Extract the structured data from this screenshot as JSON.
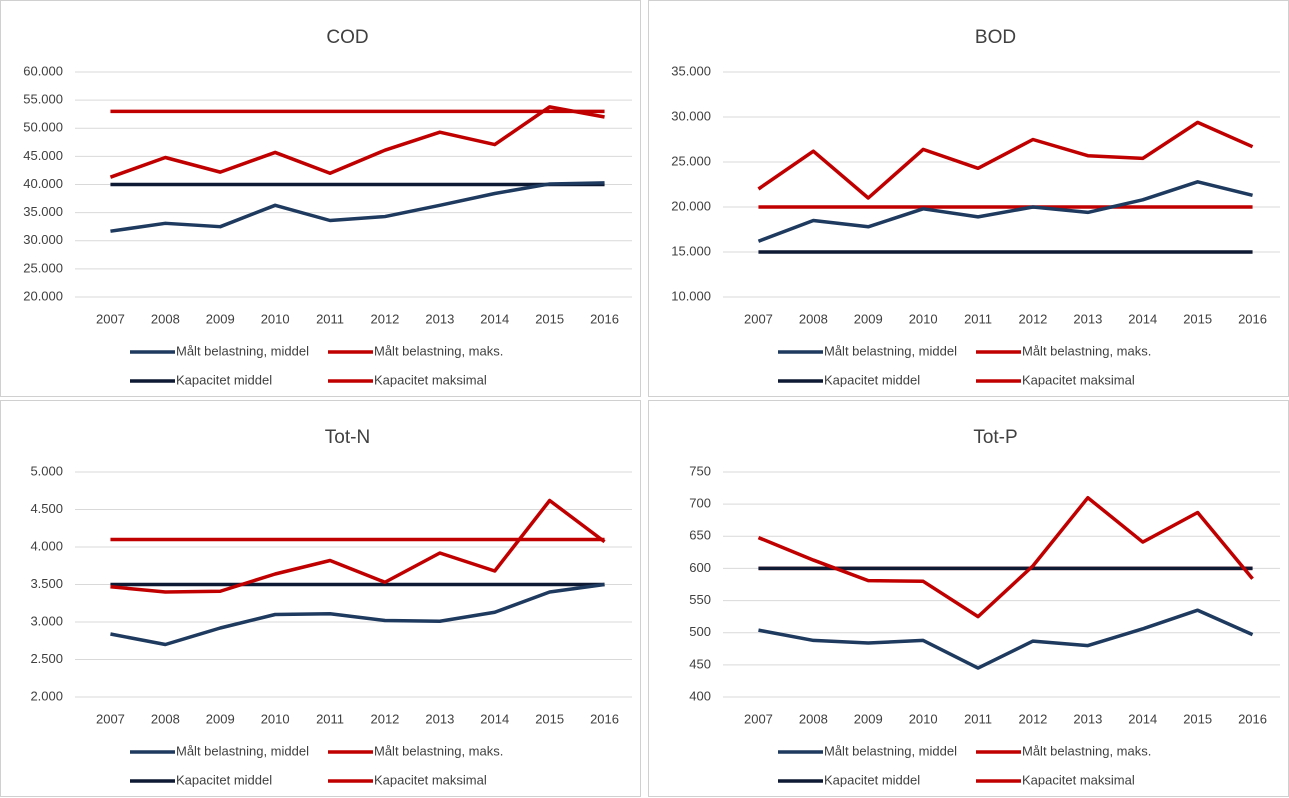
{
  "chart_data": [
    {
      "type": "line",
      "title": "COD",
      "categories": [
        "2007",
        "2008",
        "2009",
        "2010",
        "2011",
        "2012",
        "2013",
        "2014",
        "2015",
        "2016"
      ],
      "ylim": [
        20000,
        60000
      ],
      "yticks": [
        {
          "value": 20000,
          "label": "20.000"
        },
        {
          "value": 25000,
          "label": "25.000"
        },
        {
          "value": 30000,
          "label": "30.000"
        },
        {
          "value": 35000,
          "label": "35.000"
        },
        {
          "value": 40000,
          "label": "40.000"
        },
        {
          "value": 45000,
          "label": "45.000"
        },
        {
          "value": 50000,
          "label": "50.000"
        },
        {
          "value": 55000,
          "label": "55.000"
        },
        {
          "value": 60000,
          "label": "60.000"
        }
      ],
      "grid": true,
      "series": [
        {
          "name": "Målt belastning, middel",
          "color": "#1f3a5f",
          "values": [
            31700,
            33100,
            32500,
            36300,
            33600,
            34300,
            36300,
            38400,
            40100,
            40300
          ]
        },
        {
          "name": "Målt belastning, maks.",
          "color": "#c00000",
          "values": [
            41300,
            44800,
            42200,
            45700,
            42000,
            46100,
            49300,
            47100,
            53800,
            52000
          ]
        },
        {
          "name": "Kapacitet middel",
          "color": "#0e1a33",
          "values": [
            40000,
            40000,
            40000,
            40000,
            40000,
            40000,
            40000,
            40000,
            40000,
            40000
          ]
        },
        {
          "name": "Kapacitet maksimal",
          "color": "#c00000",
          "values": [
            53000,
            53000,
            53000,
            53000,
            53000,
            53000,
            53000,
            53000,
            53000,
            53000
          ]
        }
      ]
    },
    {
      "type": "line",
      "title": "BOD",
      "categories": [
        "2007",
        "2008",
        "2009",
        "2010",
        "2011",
        "2012",
        "2013",
        "2014",
        "2015",
        "2016"
      ],
      "ylim": [
        10000,
        35000
      ],
      "yticks": [
        {
          "value": 10000,
          "label": "10.000"
        },
        {
          "value": 15000,
          "label": "15.000"
        },
        {
          "value": 20000,
          "label": "20.000"
        },
        {
          "value": 25000,
          "label": "25.000"
        },
        {
          "value": 30000,
          "label": "30.000"
        },
        {
          "value": 35000,
          "label": "35.000"
        }
      ],
      "grid": true,
      "series": [
        {
          "name": "Målt belastning, middel",
          "color": "#1f3a5f",
          "values": [
            16200,
            18500,
            17800,
            19800,
            18900,
            20000,
            19400,
            20800,
            22800,
            21300
          ]
        },
        {
          "name": "Målt belastning, maks.",
          "color": "#c00000",
          "values": [
            22000,
            26200,
            21000,
            26400,
            24300,
            27500,
            25700,
            25400,
            29400,
            26700
          ]
        },
        {
          "name": "Kapacitet middel",
          "color": "#0e1a33",
          "values": [
            15000,
            15000,
            15000,
            15000,
            15000,
            15000,
            15000,
            15000,
            15000,
            15000
          ]
        },
        {
          "name": "Kapacitet maksimal",
          "color": "#c00000",
          "values": [
            20000,
            20000,
            20000,
            20000,
            20000,
            20000,
            20000,
            20000,
            20000,
            20000
          ]
        }
      ]
    },
    {
      "type": "line",
      "title": "Tot-N",
      "categories": [
        "2007",
        "2008",
        "2009",
        "2010",
        "2011",
        "2012",
        "2013",
        "2014",
        "2015",
        "2016"
      ],
      "ylim": [
        2000,
        5000
      ],
      "yticks": [
        {
          "value": 2000,
          "label": "2.000"
        },
        {
          "value": 2500,
          "label": "2.500"
        },
        {
          "value": 3000,
          "label": "3.000"
        },
        {
          "value": 3500,
          "label": "3.500"
        },
        {
          "value": 4000,
          "label": "4.000"
        },
        {
          "value": 4500,
          "label": "4.500"
        },
        {
          "value": 5000,
          "label": "5.000"
        }
      ],
      "grid": true,
      "series": [
        {
          "name": "Målt belastning, middel",
          "color": "#1f3a5f",
          "values": [
            2840,
            2700,
            2920,
            3100,
            3110,
            3020,
            3010,
            3130,
            3400,
            3500
          ]
        },
        {
          "name": "Målt belastning, maks.",
          "color": "#c00000",
          "values": [
            3470,
            3400,
            3410,
            3640,
            3820,
            3530,
            3920,
            3680,
            4620,
            4070
          ]
        },
        {
          "name": "Kapacitet middel",
          "color": "#0e1a33",
          "values": [
            3500,
            3500,
            3500,
            3500,
            3500,
            3500,
            3500,
            3500,
            3500,
            3500
          ]
        },
        {
          "name": "Kapacitet maksimal",
          "color": "#c00000",
          "values": [
            4100,
            4100,
            4100,
            4100,
            4100,
            4100,
            4100,
            4100,
            4100,
            4100
          ]
        }
      ]
    },
    {
      "type": "line",
      "title": "Tot-P",
      "categories": [
        "2007",
        "2008",
        "2009",
        "2010",
        "2011",
        "2012",
        "2013",
        "2014",
        "2015",
        "2016"
      ],
      "ylim": [
        400,
        750
      ],
      "yticks": [
        400,
        450,
        500,
        550,
        600,
        650,
        700,
        750
      ],
      "grid": true,
      "series": [
        {
          "name": "Målt belastning, middel",
          "color": "#1f3a5f",
          "values": [
            504,
            488,
            484,
            488,
            445,
            487,
            480,
            506,
            535,
            497
          ]
        },
        {
          "name": "Målt belastning, maks.",
          "color": "#c00000",
          "values": [
            648,
            613,
            581,
            580,
            525,
            604,
            710,
            641,
            687,
            584
          ]
        },
        {
          "name": "Kapacitet middel",
          "color": "#0e1a33",
          "values": [
            600,
            600,
            600,
            600,
            600,
            600,
            600,
            600,
            600,
            600
          ]
        },
        {
          "name": "Kapacitet maksimal",
          "color": "#c00000",
          "values": [
            600,
            600,
            600,
            600,
            600,
            600,
            600,
            600,
            600,
            600
          ]
        }
      ]
    }
  ]
}
